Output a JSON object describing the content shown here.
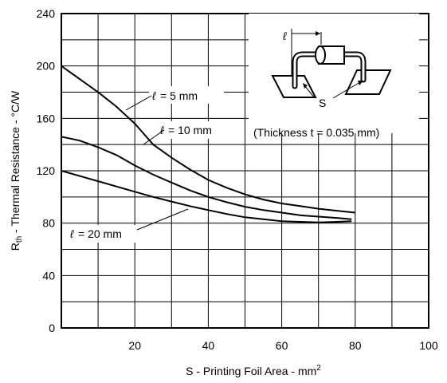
{
  "chart_data": {
    "type": "line",
    "xlabel": "S - Printing Foil Area - mm",
    "xlabel_sup": "2",
    "ylabel_main": "R",
    "ylabel_sub": "th",
    "ylabel_rest": " - Thermal Resistance - °C/W",
    "xlim": [
      0,
      100
    ],
    "ylim": [
      0,
      240
    ],
    "x_ticks": [
      0,
      20,
      40,
      60,
      80,
      100
    ],
    "x_tick_labels": [
      "0",
      "20",
      "40",
      "60",
      "80",
      "100"
    ],
    "y_ticks": [
      0,
      40,
      80,
      120,
      160,
      200,
      240
    ],
    "y_tick_labels": [
      "0",
      "40",
      "80",
      "120",
      "160",
      "200",
      "240"
    ],
    "grid": true,
    "series": [
      {
        "name": "ℓ = 5 mm",
        "x": [
          0,
          5,
          10,
          15,
          20,
          25,
          30,
          35,
          40,
          45,
          50,
          55,
          60,
          65,
          70,
          75,
          80
        ],
        "y": [
          200,
          190,
          180,
          169,
          156,
          140,
          130,
          121,
          113,
          107,
          102,
          98,
          95,
          93,
          91,
          89.5,
          88
        ]
      },
      {
        "name": "ℓ = 10 mm",
        "x": [
          0,
          5,
          10,
          15,
          20,
          25,
          30,
          35,
          40,
          45,
          50,
          55,
          60,
          65,
          70,
          75,
          79
        ],
        "y": [
          146,
          143,
          138,
          132,
          124,
          117,
          111,
          105,
          100,
          96,
          92.5,
          90,
          88,
          86,
          85,
          84,
          83
        ]
      },
      {
        "name": "ℓ = 20 mm",
        "x": [
          0,
          5,
          10,
          15,
          20,
          25,
          30,
          35,
          40,
          45,
          50,
          55,
          60,
          65,
          70,
          75,
          79
        ],
        "y": [
          120,
          116,
          112,
          108,
          104,
          100,
          96.5,
          93,
          90,
          87,
          84.5,
          83,
          81.5,
          81,
          80.5,
          81,
          81.5
        ]
      }
    ],
    "annotations": {
      "l5": "= 5 mm",
      "l10": "= 10 mm",
      "l20": "= 20 mm",
      "thickness": "(Thickness t = 0.035 mm)",
      "inset_ell": "ℓ",
      "inset_s": "S",
      "ell_symbol": "ℓ"
    }
  }
}
